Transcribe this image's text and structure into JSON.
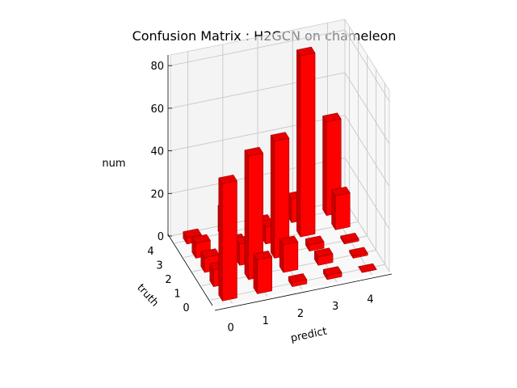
{
  "chart_data": {
    "type": "bar3d",
    "title": "Confusion Matrix : H2GCN on chameleon",
    "xlabel": "predict",
    "ylabel": "truth",
    "zlabel": "num",
    "x_ticks": [
      "0",
      "1",
      "2",
      "3",
      "4"
    ],
    "y_ticks": [
      "0",
      "1",
      "2",
      "3",
      "4"
    ],
    "z_ticks": [
      "0",
      "20",
      "40",
      "60",
      "80"
    ],
    "zlim": [
      0,
      85
    ],
    "grid": true,
    "bar_color": "#ff0000",
    "matrix_truth_by_predict": [
      [
        55,
        16,
        2,
        2,
        0
      ],
      [
        8,
        58,
        13,
        4,
        1
      ],
      [
        7,
        10,
        55,
        3,
        1
      ],
      [
        7,
        4,
        8,
        85,
        16
      ],
      [
        3,
        12,
        3,
        11,
        44
      ]
    ]
  }
}
